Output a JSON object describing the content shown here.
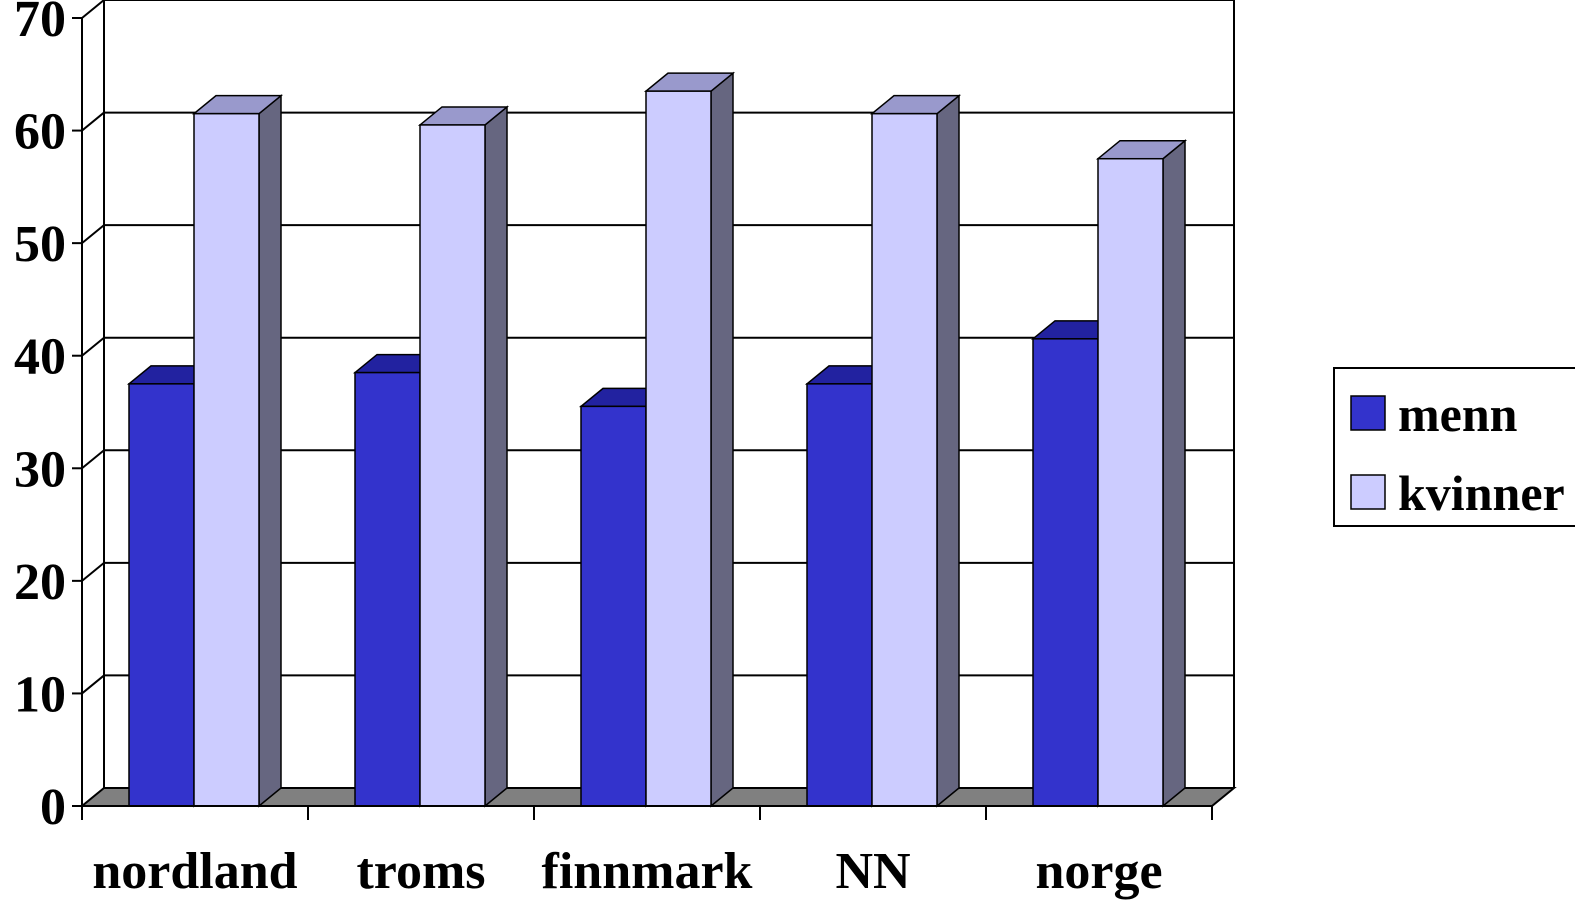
{
  "chart_data": {
    "type": "bar",
    "categories": [
      "nordland",
      "troms",
      "finnmark",
      "NN",
      "norge"
    ],
    "series": [
      {
        "name": "menn",
        "values": [
          37.5,
          38.5,
          35.5,
          37.5,
          41.5
        ]
      },
      {
        "name": "kvinner",
        "values": [
          61.5,
          60.5,
          63.5,
          61.5,
          57.5
        ]
      }
    ],
    "title": "",
    "xlabel": "",
    "ylabel": "",
    "ylim": [
      0,
      70
    ],
    "yticks": [
      "0",
      "10",
      "20",
      "30",
      "40",
      "50",
      "60",
      "70"
    ],
    "grid": true,
    "legend_position": "right",
    "style": "3d-clustered-column",
    "colors": {
      "menn": {
        "front": "#3333CC",
        "top": "#2222A0",
        "side": "#1A1A78"
      },
      "kvinner": {
        "front": "#CCCCFF",
        "top": "#9999CC",
        "side": "#666680"
      },
      "floor": "#808080",
      "grid": "#000000",
      "background": "#FFFFFF"
    }
  }
}
